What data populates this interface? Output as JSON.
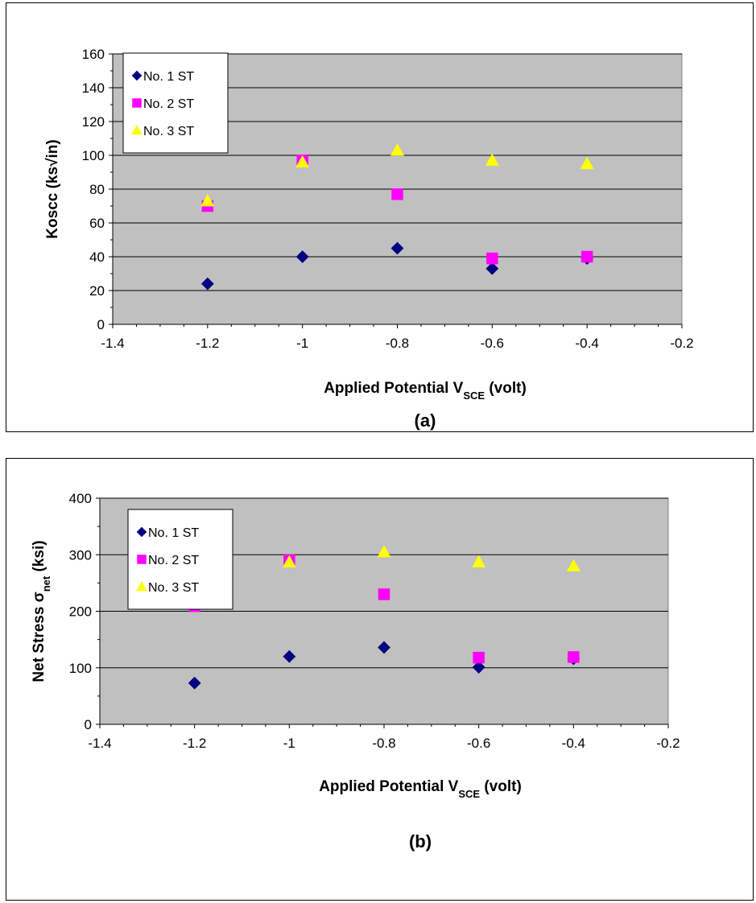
{
  "chart_data": [
    {
      "type": "scatter",
      "panel_label": "(a)",
      "xlabel": {
        "main": "Applied Potential V",
        "sub": "SCE",
        "tail": " (volt)"
      },
      "ylabel": "Koscc (ks√in)",
      "xlim": [
        -1.4,
        -0.2
      ],
      "ylim": [
        0,
        160
      ],
      "xticks": [
        -1.4,
        -1.2,
        -1,
        -0.8,
        -0.6,
        -0.4,
        -0.2
      ],
      "xtick_labels": [
        "-1.4",
        "-1.2",
        "-1",
        "-0.8",
        "-0.6",
        "-0.4",
        "-0.2"
      ],
      "yticks": [
        0,
        20,
        40,
        60,
        80,
        100,
        120,
        140,
        160
      ],
      "ytick_labels": [
        "0",
        "20",
        "40",
        "60",
        "80",
        "100",
        "120",
        "140",
        "160"
      ],
      "grid": "horizontal",
      "plot_background": "#c0c0c0",
      "legend_position": "top-left",
      "series": [
        {
          "name": "No. 1 ST",
          "marker": "diamond",
          "color": "#000080",
          "x": [
            -1.2,
            -1.0,
            -0.8,
            -0.6,
            -0.4
          ],
          "y": [
            24,
            40,
            45,
            33,
            39
          ]
        },
        {
          "name": "No. 2 ST",
          "marker": "square",
          "color": "#ff00ff",
          "x": [
            -1.2,
            -1.0,
            -0.8,
            -0.6,
            -0.4
          ],
          "y": [
            70,
            97,
            77,
            39,
            40
          ]
        },
        {
          "name": "No. 3 ST",
          "marker": "triangle",
          "color": "#ffff00",
          "x": [
            -1.2,
            -1.0,
            -0.8,
            -0.6,
            -0.4
          ],
          "y": [
            73,
            96,
            103,
            97,
            95
          ]
        }
      ]
    },
    {
      "type": "scatter",
      "panel_label": "(b)",
      "xlabel": {
        "main": "Applied Potential V",
        "sub": "SCE",
        "tail": " (volt)"
      },
      "ylabel": {
        "main": "Net Stress σ",
        "sub": "net",
        "tail": "  (ksi)"
      },
      "xlim": [
        -1.4,
        -0.2
      ],
      "ylim": [
        0,
        400
      ],
      "xticks": [
        -1.4,
        -1.2,
        -1,
        -0.8,
        -0.6,
        -0.4,
        -0.2
      ],
      "xtick_labels": [
        "-1.4",
        "-1.2",
        "-1",
        "-0.8",
        "-0.6",
        "-0.4",
        "-0.2"
      ],
      "yticks": [
        0,
        100,
        200,
        300,
        400
      ],
      "ytick_labels": [
        "0",
        "100",
        "200",
        "300",
        "400"
      ],
      "grid": "horizontal",
      "plot_background": "#c0c0c0",
      "legend_position": "top-left",
      "series": [
        {
          "name": "No. 1 ST",
          "marker": "diamond",
          "color": "#000080",
          "x": [
            -1.2,
            -1.0,
            -0.8,
            -0.6,
            -0.4
          ],
          "y": [
            73,
            120,
            136,
            101,
            116
          ]
        },
        {
          "name": "No. 2 ST",
          "marker": "square",
          "color": "#ff00ff",
          "x": [
            -1.2,
            -1.0,
            -0.8,
            -0.6,
            -0.4
          ],
          "y": [
            209,
            290,
            230,
            118,
            119
          ]
        },
        {
          "name": "No. 3 ST",
          "marker": "triangle",
          "color": "#ffff00",
          "x": [
            -1.2,
            -1.0,
            -0.8,
            -0.6,
            -0.4
          ],
          "y": [
            216,
            287,
            305,
            287,
            280
          ]
        }
      ]
    }
  ]
}
